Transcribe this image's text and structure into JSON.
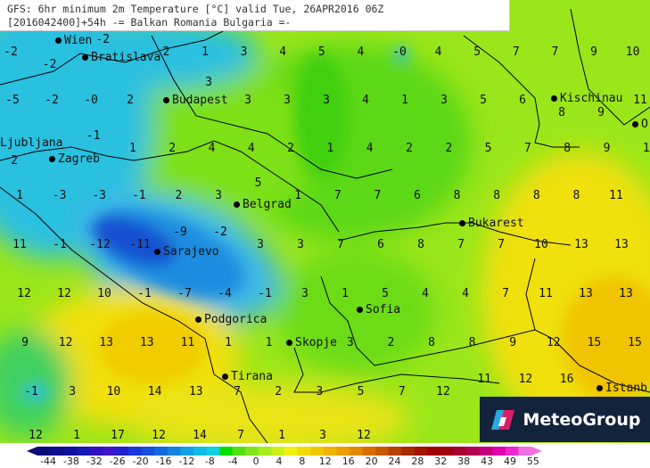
{
  "header": {
    "line1": "GFS: 6hr minimum 2m Temperature [°C] valid Tue, 26APR2016 06Z",
    "line2": "[2016042400]+54h -= Balkan Romania Bulgaria =-"
  },
  "grid_values": [
    [
      "-2",
      "-2",
      "-2",
      "",
      "2",
      "1",
      "3",
      "4",
      "5",
      "4",
      "-0",
      "4",
      "5",
      "7",
      "7",
      "9",
      "10"
    ],
    [
      "-5",
      "-2",
      "-0",
      "2",
      "",
      "3",
      "3",
      "3",
      "3",
      "4",
      "1",
      "3",
      "5",
      "6",
      "8",
      "9",
      "11"
    ],
    [
      "2",
      "",
      "-1",
      "1",
      "2",
      "4",
      "4",
      "2",
      "1",
      "4",
      "2",
      "2",
      "5",
      "7",
      "8",
      "9",
      "1"
    ],
    [
      "1",
      "-3",
      "-3",
      "-1",
      "2",
      "3",
      "5",
      "1",
      "7",
      "7",
      "6",
      "8",
      "8",
      "8",
      "8",
      "11",
      ""
    ],
    [
      "11",
      "-1",
      "-12",
      "-11",
      "-9",
      "-2",
      "3",
      "3",
      "7",
      "6",
      "8",
      "7",
      "7",
      "10",
      "13",
      "13"
    ],
    [
      "12",
      "12",
      "10",
      "-1",
      "-7",
      "-4",
      "-1",
      "3",
      "1",
      "5",
      "4",
      "4",
      "7",
      "11",
      "13",
      "13"
    ],
    [
      "9",
      "12",
      "13",
      "13",
      "11",
      "1",
      "1",
      "",
      "3",
      "2",
      "8",
      "8",
      "9",
      "12",
      "15",
      "15"
    ],
    [
      "-1",
      "3",
      "10",
      "14",
      "13",
      "7",
      "2",
      "3",
      "5",
      "7",
      "12",
      "11",
      "12",
      "16",
      ""
    ],
    [
      "12",
      "1",
      "17",
      "12",
      "14",
      "7",
      "1",
      "3",
      "12"
    ]
  ],
  "cities": [
    {
      "name": "Wien"
    },
    {
      "name": "Bratislava"
    },
    {
      "name": "Budapest"
    },
    {
      "name": "Kischinau"
    },
    {
      "name": "O"
    },
    {
      "name": "Ljubljana"
    },
    {
      "name": "Zagreb"
    },
    {
      "name": "Belgrad"
    },
    {
      "name": "Bukarest"
    },
    {
      "name": "Sarajevo"
    },
    {
      "name": "Sofia"
    },
    {
      "name": "Podgorica"
    },
    {
      "name": "Skopje"
    },
    {
      "name": "Tirana"
    },
    {
      "name": "Istanb"
    }
  ],
  "logo": {
    "text": "MeteoGroup"
  },
  "colorbar": {
    "unit": "°C",
    "labels": [
      "-44",
      "-38",
      "-32",
      "-26",
      "-20",
      "-16",
      "-12",
      "-8",
      "-4",
      "0",
      "4",
      "8",
      "12",
      "16",
      "20",
      "24",
      "28",
      "32",
      "38",
      "43",
      "49",
      "55"
    ],
    "colors": [
      "#0a0a78",
      "#0c0c8c",
      "#1010a0",
      "#1818b4",
      "#3010c0",
      "#3c14cc",
      "#2020d0",
      "#1838d8",
      "#1450dc",
      "#1468e0",
      "#1484e0",
      "#14a0e4",
      "#10bce6",
      "#10d0e0",
      "#00e000",
      "#50e010",
      "#80e418",
      "#a8ec18",
      "#ccf014",
      "#f0f010",
      "#f0dc00",
      "#f0c800",
      "#f0b400",
      "#eca000",
      "#e48800",
      "#d87000",
      "#c85800",
      "#b84000",
      "#a82800",
      "#a01400",
      "#a00000",
      "#a00010",
      "#a80030",
      "#b40050",
      "#c80080",
      "#e000b0",
      "#f028d0",
      "#f070e0"
    ]
  }
}
